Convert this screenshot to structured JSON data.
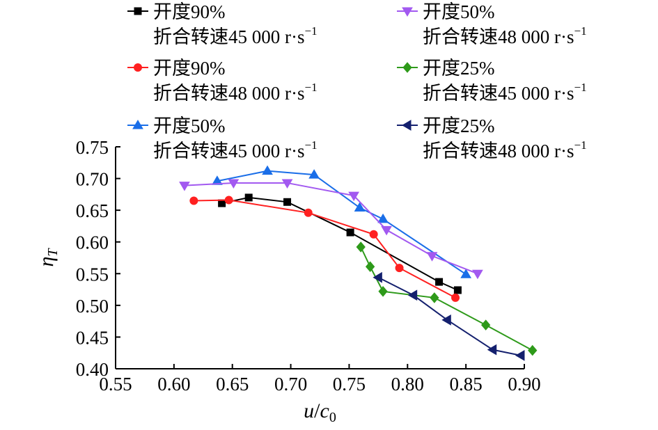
{
  "chart_data": {
    "type": "line",
    "xlabel": "u/c0",
    "xlabel_parts": {
      "u": "u",
      "slash": "/",
      "c": "c",
      "sub": "0"
    },
    "ylabel": "ηT",
    "ylabel_parts": {
      "eta": "η",
      "sub": "T"
    },
    "xlim": [
      0.55,
      0.9
    ],
    "ylim": [
      0.4,
      0.75
    ],
    "xticks": [
      "0.55",
      "0.60",
      "0.65",
      "0.70",
      "0.75",
      "0.80",
      "0.85",
      "0.90"
    ],
    "yticks": [
      "0.40",
      "0.45",
      "0.50",
      "0.55",
      "0.60",
      "0.65",
      "0.70",
      "0.75"
    ],
    "legend_placement": "top",
    "series": [
      {
        "name": "开度90% 折合转速45 000 r·s−1",
        "line1": "开度90%",
        "line2": "折合转速45 000 r·s",
        "sup": "−1",
        "color": "#000000",
        "marker": "square",
        "x": [
          0.641,
          0.664,
          0.697,
          0.751,
          0.827,
          0.843
        ],
        "y": [
          0.661,
          0.67,
          0.663,
          0.615,
          0.537,
          0.524
        ]
      },
      {
        "name": "开度90% 折合转速48 000 r·s−1",
        "line1": "开度90%",
        "line2": "折合转速48 000 r·s",
        "sup": "−1",
        "color": "#ff2020",
        "marker": "circle",
        "x": [
          0.617,
          0.647,
          0.715,
          0.771,
          0.793,
          0.841
        ],
        "y": [
          0.665,
          0.666,
          0.646,
          0.612,
          0.559,
          0.512
        ]
      },
      {
        "name": "开度50% 折合转速45 000 r·s−1",
        "line1": "开度50%",
        "line2": "折合转速45 000 r·s",
        "sup": "−1",
        "color": "#1a6ee8",
        "marker": "triangle-up",
        "x": [
          0.637,
          0.68,
          0.72,
          0.759,
          0.779,
          0.85
        ],
        "y": [
          0.696,
          0.712,
          0.706,
          0.654,
          0.636,
          0.549
        ]
      },
      {
        "name": "开度50% 折合转速48 000 r·s−1",
        "line1": "开度50%",
        "line2": "折合转速48 000 r·s",
        "sup": "−1",
        "color": "#a259f0",
        "marker": "triangle-down",
        "x": [
          0.609,
          0.651,
          0.697,
          0.754,
          0.782,
          0.821,
          0.86
        ],
        "y": [
          0.689,
          0.693,
          0.693,
          0.673,
          0.619,
          0.578,
          0.55
        ]
      },
      {
        "name": "开度25% 折合转速45 000 r·s−1",
        "line1": "开度25%",
        "line2": "折合转速45 000 r·s",
        "sup": "−1",
        "color": "#2e9a1a",
        "marker": "diamond",
        "x": [
          0.76,
          0.768,
          0.779,
          0.823,
          0.867,
          0.907
        ],
        "y": [
          0.592,
          0.561,
          0.522,
          0.512,
          0.469,
          0.429
        ]
      },
      {
        "name": "开度25% 折合转速48 000 r·s−1",
        "line1": "开度25%",
        "line2": "折合转速48 000 r·s",
        "sup": "−1",
        "color": "#14206e",
        "marker": "triangle-left",
        "x": [
          0.775,
          0.805,
          0.834,
          0.873,
          0.897
        ],
        "y": [
          0.544,
          0.516,
          0.477,
          0.43,
          0.421
        ]
      }
    ]
  }
}
